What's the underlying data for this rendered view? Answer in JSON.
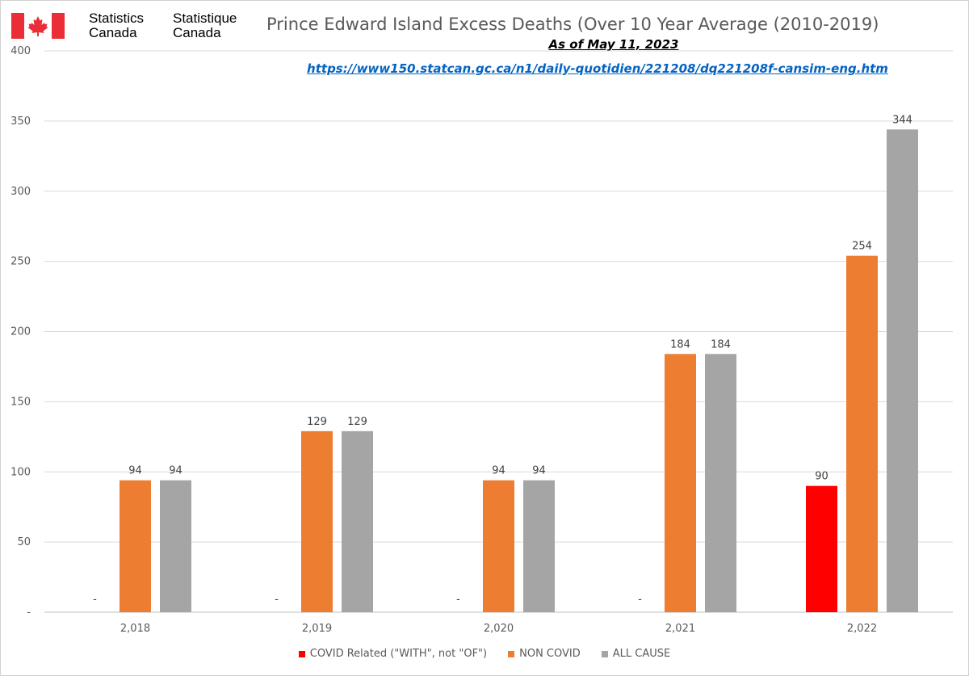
{
  "branding": {
    "name_en_line1": "Statistics",
    "name_en_line2": "Canada",
    "name_fr_line1": "Statistique",
    "name_fr_line2": "Canada",
    "flag_color": "#eb2d37"
  },
  "header": {
    "title": "Prince Edward Island Excess Deaths (Over 10 Year Average (2010-2019)",
    "subtitle": "As of May 11, 2023",
    "source_link": "https://www150.statcan.gc.ca/n1/daily-quotidien/221208/dq221208f-cansim-eng.htm"
  },
  "chart_data": {
    "type": "bar",
    "title": "Prince Edward Island Excess Deaths (Over 10 Year Average (2010-2019)",
    "xlabel": "",
    "ylabel": "",
    "categories": [
      "2,018",
      "2,019",
      "2,020",
      "2,021",
      "2,022"
    ],
    "ylim": [
      0,
      400
    ],
    "yticks": [
      0,
      50,
      100,
      150,
      200,
      250,
      300,
      350,
      400
    ],
    "ytick_labels": [
      "-",
      "50",
      "100",
      "150",
      "200",
      "250",
      "300",
      "350",
      "400"
    ],
    "grid": true,
    "legend_position": "bottom",
    "series": [
      {
        "name": "COVID Related (\"WITH\", not \"OF\")",
        "color": "#ff0000",
        "values": [
          0,
          0,
          0,
          0,
          90
        ],
        "labels": [
          "-",
          "-",
          "-",
          "-",
          "90"
        ]
      },
      {
        "name": "NON COVID",
        "color": "#ed7d31",
        "values": [
          94,
          129,
          94,
          184,
          254
        ],
        "labels": [
          "94",
          "129",
          "94",
          "184",
          "254"
        ]
      },
      {
        "name": "ALL CAUSE",
        "color": "#a5a5a5",
        "values": [
          94,
          129,
          94,
          184,
          344
        ],
        "labels": [
          "94",
          "129",
          "94",
          "184",
          "344"
        ]
      }
    ]
  }
}
